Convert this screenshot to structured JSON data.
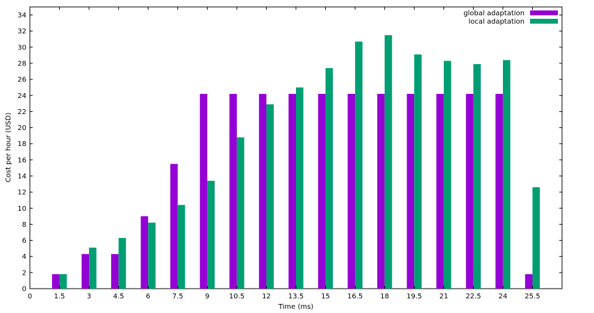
{
  "chart_data": {
    "type": "bar",
    "xlabel": "Time (ms)",
    "ylabel": "Cost per hour (USD)",
    "xlim": [
      0,
      27
    ],
    "ylim": [
      0,
      35
    ],
    "xticks": [
      "0",
      "1.5",
      "3",
      "4.5",
      "6",
      "7.5",
      "9",
      "10.5",
      "12",
      "13.5",
      "15",
      "16.5",
      "18",
      "19.5",
      "21",
      "22.5",
      "24",
      "25.5"
    ],
    "yticks": [
      "0",
      "2",
      "4",
      "6",
      "8",
      "10",
      "12",
      "14",
      "16",
      "18",
      "20",
      "22",
      "24",
      "26",
      "28",
      "30",
      "32",
      "34"
    ],
    "legend_position": "top-right",
    "grid": false,
    "x": [
      1.5,
      3,
      4.5,
      6,
      7.5,
      9,
      10.5,
      12,
      13.5,
      15,
      16.5,
      18,
      19.5,
      21,
      22.5,
      24,
      25.5
    ],
    "series": [
      {
        "name": "global adaptation",
        "color": "#9400d3",
        "values": [
          1.8,
          4.3,
          4.3,
          9.0,
          15.5,
          24.2,
          24.2,
          24.2,
          24.2,
          24.2,
          24.2,
          24.2,
          24.2,
          24.2,
          24.2,
          24.2,
          1.8
        ]
      },
      {
        "name": "local adaptation",
        "color": "#009e73",
        "values": [
          1.8,
          5.1,
          6.3,
          8.2,
          10.4,
          13.4,
          18.8,
          22.9,
          25.0,
          27.4,
          30.7,
          31.5,
          29.1,
          28.3,
          27.9,
          28.4,
          12.6
        ]
      }
    ]
  }
}
